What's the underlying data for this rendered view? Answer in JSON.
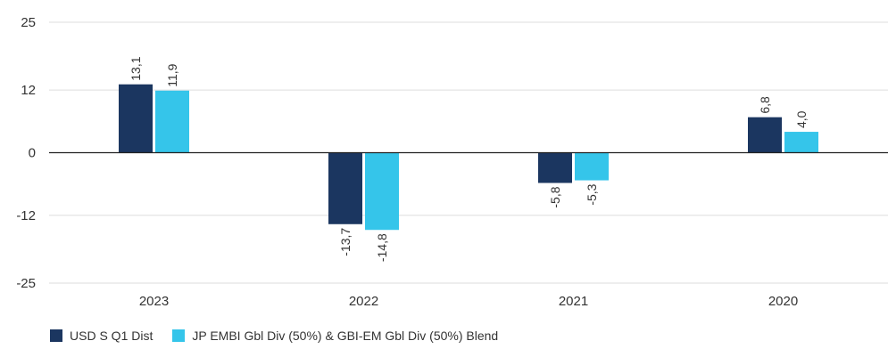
{
  "chart_data": {
    "type": "bar",
    "categories": [
      "2023",
      "2022",
      "2021",
      "2020"
    ],
    "series": [
      {
        "name": "USD S Q1 Dist",
        "color": "#1b3660",
        "values": [
          13.1,
          -13.7,
          -5.8,
          6.8
        ],
        "labels": [
          "13,1",
          "-13,7",
          "-5,8",
          "6,8"
        ]
      },
      {
        "name": "JP EMBI Gbl Div (50%) & GBI-EM Gbl Div (50%) Blend",
        "color": "#35c5ea",
        "values": [
          11.9,
          -14.8,
          -5.3,
          4.0
        ],
        "labels": [
          "11,9",
          "-14,8",
          "-5,3",
          "4,0"
        ]
      }
    ],
    "yticks": [
      25,
      12,
      0,
      -12,
      -25
    ],
    "ylim": [
      -25,
      25
    ],
    "grid": true,
    "legend_position": "bottom-left",
    "title": "",
    "xlabel": "",
    "ylabel": ""
  }
}
